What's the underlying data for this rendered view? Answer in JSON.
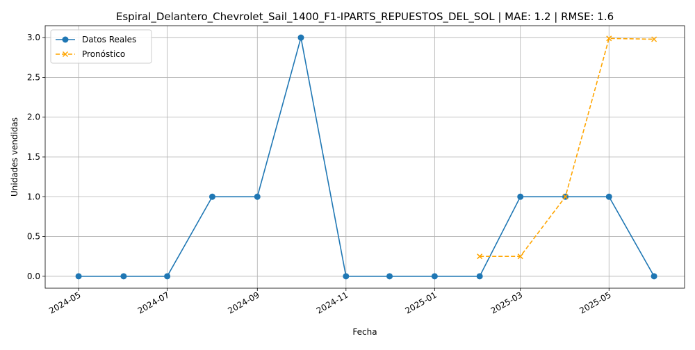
{
  "chart_data": {
    "type": "line",
    "title": "Espiral_Delantero_Chevrolet_Sail_1400_F1-IPARTS_REPUESTOS_DEL_SOL | MAE: 1.2 | RMSE: 1.6",
    "xlabel": "Fecha",
    "ylabel": "Unidades vendidas",
    "x_ticks": [
      "2024-05",
      "2024-07",
      "2024-09",
      "2024-11",
      "2025-01",
      "2025-03",
      "2025-05"
    ],
    "y_ticks": [
      "0.0",
      "0.5",
      "1.0",
      "1.5",
      "2.0",
      "2.5",
      "3.0"
    ],
    "ylim": [
      -0.15,
      3.15
    ],
    "xlim": [
      "2024-04-08",
      "2025-06-22"
    ],
    "grid": true,
    "legend_position": "top-left",
    "series": [
      {
        "name": "Datos Reales",
        "color": "#1f77b4",
        "style": "solid",
        "marker": "circle",
        "x": [
          "2024-05-01",
          "2024-06-01",
          "2024-07-01",
          "2024-08-01",
          "2024-09-01",
          "2024-10-01",
          "2024-11-01",
          "2024-12-01",
          "2025-01-01",
          "2025-02-01",
          "2025-03-01",
          "2025-04-01",
          "2025-05-01",
          "2025-06-01"
        ],
        "values": [
          0,
          0,
          0,
          1,
          1,
          3,
          0,
          0,
          0,
          0,
          1,
          1,
          1,
          0
        ]
      },
      {
        "name": "Pronóstico",
        "color": "#ffa500",
        "style": "dashed",
        "marker": "x",
        "x": [
          "2025-02-01",
          "2025-03-01",
          "2025-04-01",
          "2025-05-01",
          "2025-06-01"
        ],
        "values": [
          0.25,
          0.25,
          1.0,
          2.99,
          2.98
        ]
      }
    ]
  }
}
